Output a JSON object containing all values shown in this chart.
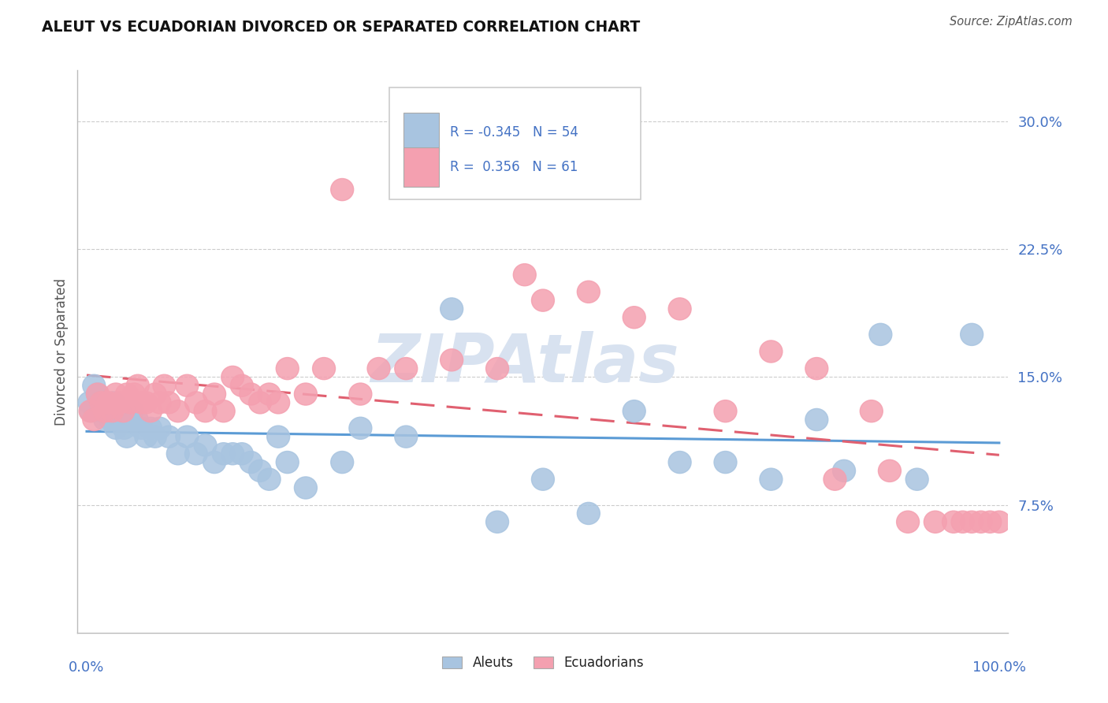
{
  "title": "ALEUT VS ECUADORIAN DIVORCED OR SEPARATED CORRELATION CHART",
  "source": "Source: ZipAtlas.com",
  "ylabel": "Divorced or Separated",
  "legend_aleuts": "Aleuts",
  "legend_ecuadorians": "Ecuadorians",
  "r_aleuts": -0.345,
  "n_aleuts": 54,
  "r_ecuadorians": 0.356,
  "n_ecuadorians": 61,
  "color_aleuts": "#a8c4e0",
  "color_ecuadorians": "#f4a0b0",
  "trendline_aleuts": "#5b9bd5",
  "trendline_ecuadorians": "#e06070",
  "color_blue_text": "#4472c4",
  "ytick_labels": [
    "7.5%",
    "15.0%",
    "22.5%",
    "30.0%"
  ],
  "ytick_values": [
    0.075,
    0.15,
    0.225,
    0.3
  ],
  "aleuts_x": [
    0.3,
    0.5,
    0.8,
    1.2,
    1.5,
    1.8,
    2.0,
    2.3,
    2.6,
    2.9,
    3.2,
    3.5,
    3.8,
    4.1,
    4.4,
    4.7,
    5.0,
    5.5,
    6.0,
    6.5,
    7.0,
    7.5,
    8.0,
    9.0,
    10.0,
    11.0,
    12.0,
    13.0,
    14.0,
    15.0,
    16.0,
    17.0,
    18.0,
    19.0,
    20.0,
    21.0,
    22.0,
    24.0,
    28.0,
    30.0,
    35.0,
    40.0,
    45.0,
    50.0,
    55.0,
    60.0,
    65.0,
    70.0,
    75.0,
    80.0,
    83.0,
    87.0,
    91.0,
    97.0
  ],
  "aleuts_y": [
    0.135,
    0.13,
    0.145,
    0.14,
    0.13,
    0.135,
    0.125,
    0.13,
    0.125,
    0.135,
    0.12,
    0.125,
    0.13,
    0.12,
    0.115,
    0.125,
    0.13,
    0.125,
    0.12,
    0.115,
    0.12,
    0.115,
    0.12,
    0.115,
    0.105,
    0.115,
    0.105,
    0.11,
    0.1,
    0.105,
    0.105,
    0.105,
    0.1,
    0.095,
    0.09,
    0.115,
    0.1,
    0.085,
    0.1,
    0.12,
    0.115,
    0.19,
    0.065,
    0.09,
    0.07,
    0.13,
    0.1,
    0.1,
    0.09,
    0.125,
    0.095,
    0.175,
    0.09,
    0.175
  ],
  "ecuadorians_x": [
    0.4,
    0.8,
    1.2,
    1.6,
    2.0,
    2.4,
    2.8,
    3.2,
    3.6,
    4.0,
    4.4,
    4.8,
    5.2,
    5.6,
    6.0,
    6.5,
    7.0,
    7.5,
    8.0,
    8.5,
    9.0,
    10.0,
    11.0,
    12.0,
    13.0,
    14.0,
    15.0,
    16.0,
    17.0,
    18.0,
    19.0,
    20.0,
    21.0,
    22.0,
    24.0,
    26.0,
    28.0,
    30.0,
    32.0,
    35.0,
    40.0,
    45.0,
    48.0,
    50.0,
    55.0,
    60.0,
    65.0,
    70.0,
    75.0,
    80.0,
    82.0,
    86.0,
    88.0,
    90.0,
    93.0,
    95.0,
    96.0,
    97.0,
    98.0,
    99.0,
    100.0
  ],
  "ecuadorians_y": [
    0.13,
    0.125,
    0.14,
    0.135,
    0.13,
    0.135,
    0.13,
    0.14,
    0.135,
    0.13,
    0.14,
    0.135,
    0.14,
    0.145,
    0.135,
    0.135,
    0.13,
    0.14,
    0.135,
    0.145,
    0.135,
    0.13,
    0.145,
    0.135,
    0.13,
    0.14,
    0.13,
    0.15,
    0.145,
    0.14,
    0.135,
    0.14,
    0.135,
    0.155,
    0.14,
    0.155,
    0.26,
    0.14,
    0.155,
    0.155,
    0.16,
    0.155,
    0.21,
    0.195,
    0.2,
    0.185,
    0.19,
    0.13,
    0.165,
    0.155,
    0.09,
    0.13,
    0.095,
    0.065,
    0.065,
    0.065,
    0.065,
    0.065,
    0.065,
    0.065,
    0.065
  ],
  "background_color": "#ffffff",
  "grid_color": "#cccccc",
  "watermark": "ZIPAtlas",
  "watermark_color": "#d8e2f0"
}
